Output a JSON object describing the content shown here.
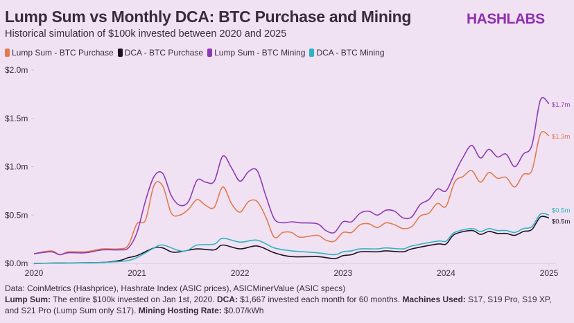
{
  "header": {
    "title": "Lump Sum vs Monthly DCA: BTC Purchase and Mining",
    "subtitle": "Historical simulation of $100k invested between 2020 and 2025",
    "logo": "HASHLABS"
  },
  "footer": {
    "line1": "Data: CoinMetrics (Hashprice), Hashrate Index (ASIC prices), ASICMinerValue (ASIC specs)",
    "lump_label": "Lump Sum:",
    "lump_text": " The entire $100k invested on Jan 1st, 2020. ",
    "dca_label": "DCA:",
    "dca_text": " $1,667 invested each month for 60 months. ",
    "machines_label": "Machines Used:",
    "machines_text": " S17, S19 Pro, S19 XP, and S21 Pro (Lump Sum only S17). ",
    "hosting_label": "Mining Hosting Rate:",
    "hosting_text": " $0.07/kWh"
  },
  "chart_data": {
    "type": "line",
    "title": "Lump Sum vs Monthly DCA: BTC Purchase and Mining",
    "subtitle": "Historical simulation of $100k invested between 2020 and 2025",
    "xlabel": "",
    "ylabel": "",
    "xlim": [
      "2020-01",
      "2025-01"
    ],
    "ylim": [
      0,
      2.0
    ],
    "y_unit": "million USD",
    "x_ticks": [
      "2020",
      "2021",
      "2022",
      "2023",
      "2024",
      "2025"
    ],
    "y_ticks": [
      {
        "value": 0,
        "label": "$0.0m"
      },
      {
        "value": 0.5,
        "label": "$0.5m"
      },
      {
        "value": 1.0,
        "label": "$1.0m"
      },
      {
        "value": 1.5,
        "label": "$1.5m"
      },
      {
        "value": 2.0,
        "label": "$2.0m"
      }
    ],
    "grid": false,
    "legend_position": "top-left",
    "series": [
      {
        "name": "Lump Sum - BTC Purchase",
        "color": "#e07a50",
        "end_label": "$1.3m",
        "points": [
          [
            "2020-01",
            0.1
          ],
          [
            "2020-03",
            0.13
          ],
          [
            "2020-04",
            0.09
          ],
          [
            "2020-05",
            0.12
          ],
          [
            "2020-07",
            0.12
          ],
          [
            "2020-09",
            0.15
          ],
          [
            "2020-11",
            0.15
          ],
          [
            "2020-12",
            0.19
          ],
          [
            "2021-01",
            0.41
          ],
          [
            "2021-02",
            0.45
          ],
          [
            "2021-03",
            0.81
          ],
          [
            "2021-04",
            0.8
          ],
          [
            "2021-05",
            0.52
          ],
          [
            "2021-06",
            0.5
          ],
          [
            "2021-07",
            0.56
          ],
          [
            "2021-08",
            0.66
          ],
          [
            "2021-09",
            0.6
          ],
          [
            "2021-10",
            0.58
          ],
          [
            "2021-11",
            0.79
          ],
          [
            "2021-12",
            0.62
          ],
          [
            "2022-01",
            0.53
          ],
          [
            "2022-02",
            0.64
          ],
          [
            "2022-03",
            0.64
          ],
          [
            "2022-04",
            0.48
          ],
          [
            "2022-05",
            0.27
          ],
          [
            "2022-06",
            0.32
          ],
          [
            "2022-07",
            0.32
          ],
          [
            "2022-08",
            0.27
          ],
          [
            "2022-10",
            0.29
          ],
          [
            "2022-11",
            0.24
          ],
          [
            "2022-12",
            0.23
          ],
          [
            "2023-01",
            0.32
          ],
          [
            "2023-02",
            0.32
          ],
          [
            "2023-03",
            0.4
          ],
          [
            "2023-04",
            0.41
          ],
          [
            "2023-05",
            0.37
          ],
          [
            "2023-06",
            0.42
          ],
          [
            "2023-07",
            0.4
          ],
          [
            "2023-08",
            0.36
          ],
          [
            "2023-09",
            0.38
          ],
          [
            "2023-10",
            0.49
          ],
          [
            "2023-11",
            0.52
          ],
          [
            "2023-12",
            0.62
          ],
          [
            "2024-01",
            0.59
          ],
          [
            "2024-02",
            0.84
          ],
          [
            "2024-03",
            0.9
          ],
          [
            "2024-04",
            0.96
          ],
          [
            "2024-05",
            0.84
          ],
          [
            "2024-06",
            0.94
          ],
          [
            "2024-07",
            0.88
          ],
          [
            "2024-08",
            0.89
          ],
          [
            "2024-09",
            0.79
          ],
          [
            "2024-10",
            0.92
          ],
          [
            "2024-11",
            0.96
          ],
          [
            "2024-12",
            1.34
          ],
          [
            "2025-01",
            1.32
          ]
        ]
      },
      {
        "name": "DCA - BTC Purchase",
        "color": "#1c1020",
        "end_label": "$0.5m",
        "points": [
          [
            "2020-01",
            0.0
          ],
          [
            "2020-05",
            0.005
          ],
          [
            "2020-09",
            0.01
          ],
          [
            "2020-11",
            0.03
          ],
          [
            "2020-12",
            0.06
          ],
          [
            "2021-01",
            0.08
          ],
          [
            "2021-03",
            0.16
          ],
          [
            "2021-04",
            0.16
          ],
          [
            "2021-05",
            0.12
          ],
          [
            "2021-06",
            0.12
          ],
          [
            "2021-08",
            0.15
          ],
          [
            "2021-10",
            0.14
          ],
          [
            "2021-11",
            0.19
          ],
          [
            "2022-01",
            0.15
          ],
          [
            "2022-03",
            0.18
          ],
          [
            "2022-05",
            0.11
          ],
          [
            "2022-07",
            0.07
          ],
          [
            "2022-10",
            0.07
          ],
          [
            "2022-12",
            0.05
          ],
          [
            "2023-01",
            0.08
          ],
          [
            "2023-02",
            0.09
          ],
          [
            "2023-03",
            0.12
          ],
          [
            "2023-05",
            0.12
          ],
          [
            "2023-06",
            0.13
          ],
          [
            "2023-08",
            0.12
          ],
          [
            "2023-09",
            0.15
          ],
          [
            "2023-12",
            0.2
          ],
          [
            "2024-01",
            0.2
          ],
          [
            "2024-02",
            0.3
          ],
          [
            "2024-04",
            0.34
          ],
          [
            "2024-05",
            0.3
          ],
          [
            "2024-06",
            0.33
          ],
          [
            "2024-07",
            0.31
          ],
          [
            "2024-08",
            0.31
          ],
          [
            "2024-09",
            0.29
          ],
          [
            "2024-10",
            0.33
          ],
          [
            "2024-11",
            0.35
          ],
          [
            "2024-12",
            0.48
          ],
          [
            "2025-01",
            0.47
          ]
        ]
      },
      {
        "name": "Lump Sum - BTC Mining",
        "color": "#8e3bb5",
        "end_label": "$1.7m",
        "points": [
          [
            "2020-01",
            0.1
          ],
          [
            "2020-03",
            0.12
          ],
          [
            "2020-04",
            0.09
          ],
          [
            "2020-05",
            0.11
          ],
          [
            "2020-07",
            0.11
          ],
          [
            "2020-09",
            0.14
          ],
          [
            "2020-11",
            0.14
          ],
          [
            "2020-12",
            0.16
          ],
          [
            "2021-01",
            0.32
          ],
          [
            "2021-02",
            0.65
          ],
          [
            "2021-03",
            0.9
          ],
          [
            "2021-04",
            0.93
          ],
          [
            "2021-05",
            0.7
          ],
          [
            "2021-06",
            0.6
          ],
          [
            "2021-07",
            0.64
          ],
          [
            "2021-08",
            0.86
          ],
          [
            "2021-09",
            0.84
          ],
          [
            "2021-10",
            0.85
          ],
          [
            "2021-11",
            1.11
          ],
          [
            "2021-12",
            0.99
          ],
          [
            "2022-01",
            0.85
          ],
          [
            "2022-02",
            0.95
          ],
          [
            "2022-03",
            0.96
          ],
          [
            "2022-04",
            0.7
          ],
          [
            "2022-05",
            0.46
          ],
          [
            "2022-06",
            0.42
          ],
          [
            "2022-07",
            0.43
          ],
          [
            "2022-08",
            0.42
          ],
          [
            "2022-10",
            0.41
          ],
          [
            "2022-11",
            0.34
          ],
          [
            "2022-12",
            0.32
          ],
          [
            "2023-01",
            0.43
          ],
          [
            "2023-02",
            0.43
          ],
          [
            "2023-03",
            0.52
          ],
          [
            "2023-04",
            0.54
          ],
          [
            "2023-05",
            0.5
          ],
          [
            "2023-06",
            0.55
          ],
          [
            "2023-07",
            0.54
          ],
          [
            "2023-08",
            0.47
          ],
          [
            "2023-09",
            0.48
          ],
          [
            "2023-10",
            0.61
          ],
          [
            "2023-11",
            0.66
          ],
          [
            "2023-12",
            0.77
          ],
          [
            "2024-01",
            0.75
          ],
          [
            "2024-02",
            0.93
          ],
          [
            "2024-03",
            1.1
          ],
          [
            "2024-04",
            1.22
          ],
          [
            "2024-05",
            1.09
          ],
          [
            "2024-06",
            1.18
          ],
          [
            "2024-07",
            1.1
          ],
          [
            "2024-08",
            1.13
          ],
          [
            "2024-09",
            1.0
          ],
          [
            "2024-10",
            1.13
          ],
          [
            "2024-11",
            1.22
          ],
          [
            "2024-12",
            1.69
          ],
          [
            "2025-01",
            1.65
          ]
        ]
      },
      {
        "name": "DCA - BTC Mining",
        "color": "#2fb3c0",
        "end_label": "$0.5m",
        "points": [
          [
            "2020-01",
            0.0
          ],
          [
            "2020-05",
            0.005
          ],
          [
            "2020-09",
            0.01
          ],
          [
            "2020-11",
            0.02
          ],
          [
            "2020-12",
            0.03
          ],
          [
            "2021-01",
            0.06
          ],
          [
            "2021-03",
            0.16
          ],
          [
            "2021-04",
            0.19
          ],
          [
            "2021-06",
            0.13
          ],
          [
            "2021-07",
            0.14
          ],
          [
            "2021-08",
            0.19
          ],
          [
            "2021-10",
            0.2
          ],
          [
            "2021-11",
            0.26
          ],
          [
            "2022-01",
            0.22
          ],
          [
            "2022-03",
            0.24
          ],
          [
            "2022-05",
            0.16
          ],
          [
            "2022-07",
            0.13
          ],
          [
            "2022-10",
            0.11
          ],
          [
            "2022-12",
            0.09
          ],
          [
            "2023-01",
            0.12
          ],
          [
            "2023-02",
            0.13
          ],
          [
            "2023-03",
            0.15
          ],
          [
            "2023-05",
            0.15
          ],
          [
            "2023-06",
            0.16
          ],
          [
            "2023-08",
            0.15
          ],
          [
            "2023-09",
            0.18
          ],
          [
            "2023-12",
            0.23
          ],
          [
            "2024-01",
            0.23
          ],
          [
            "2024-02",
            0.32
          ],
          [
            "2024-04",
            0.36
          ],
          [
            "2024-05",
            0.33
          ],
          [
            "2024-06",
            0.36
          ],
          [
            "2024-07",
            0.34
          ],
          [
            "2024-08",
            0.34
          ],
          [
            "2024-09",
            0.32
          ],
          [
            "2024-10",
            0.36
          ],
          [
            "2024-11",
            0.38
          ],
          [
            "2024-12",
            0.51
          ],
          [
            "2025-01",
            0.5
          ]
        ]
      }
    ]
  }
}
